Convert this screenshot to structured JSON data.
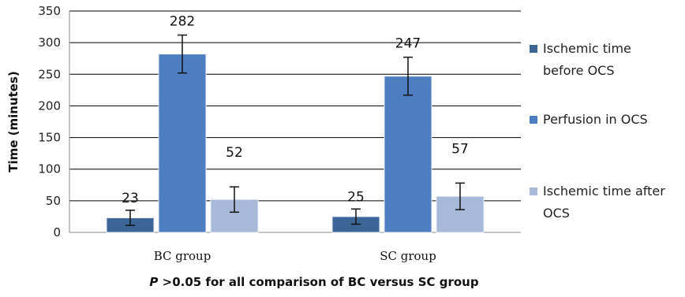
{
  "chart_data": {
    "type": "bar",
    "ylabel": "Time (minutes)",
    "ylim": [
      0,
      350
    ],
    "yticks": [
      0,
      50,
      100,
      150,
      200,
      250,
      300,
      350
    ],
    "grid": true,
    "legend_position": "right",
    "categories": [
      "BC group",
      "SC group"
    ],
    "series": [
      {
        "name": "Ischemic time before OCS",
        "name_lines": [
          "Ischemic time",
          "before OCS"
        ],
        "color": "#3c6598",
        "values": [
          23,
          25
        ],
        "errors": [
          12,
          12
        ],
        "labels": [
          "23",
          "25"
        ]
      },
      {
        "name": "Perfusion in OCS",
        "name_lines": [
          "Perfusion in OCS"
        ],
        "color": "#4d7ec2",
        "values": [
          282,
          247
        ],
        "errors": [
          30,
          30
        ],
        "labels": [
          "282",
          "247"
        ]
      },
      {
        "name": "Ischemic time after OCS",
        "name_lines": [
          "Ischemic time after",
          "OCS"
        ],
        "color": "#a7b9d8",
        "values": [
          52,
          57
        ],
        "errors": [
          20,
          21
        ],
        "labels": [
          "52",
          "57"
        ]
      }
    ],
    "footnote_italic": "P",
    "footnote_rest": " >0.05 for all comparison of BC versus SC group"
  }
}
